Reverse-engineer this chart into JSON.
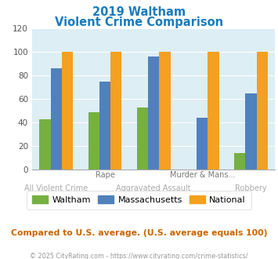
{
  "title_line1": "2019 Waltham",
  "title_line2": "Violent Crime Comparison",
  "title_color": "#1a7bbf",
  "colors": [
    "#76b041",
    "#4f81bd",
    "#f4a020"
  ],
  "values": [
    [
      43,
      86,
      100
    ],
    [
      49,
      75,
      100
    ],
    [
      53,
      96,
      100
    ],
    [
      0,
      44,
      100
    ],
    [
      14,
      65,
      100
    ]
  ],
  "top_labels": [
    null,
    "Rape",
    null,
    "Murder & Mans...",
    null
  ],
  "bot_labels": [
    "All Violent Crime",
    null,
    "Aggravated Assault",
    null,
    "Robbery"
  ],
  "top_label_color": "#777777",
  "bot_label_color": "#aaaaaa",
  "ylim": [
    0,
    120
  ],
  "yticks": [
    0,
    20,
    40,
    60,
    80,
    100,
    120
  ],
  "plot_bg": "#ddeef5",
  "footer_text": "Compared to U.S. average. (U.S. average equals 100)",
  "footer_color": "#cc6600",
  "credit_text": "© 2025 CityRating.com - https://www.cityrating.com/crime-statistics/",
  "credit_color": "#999999",
  "legend_labels": [
    "Waltham",
    "Massachusetts",
    "National"
  ]
}
